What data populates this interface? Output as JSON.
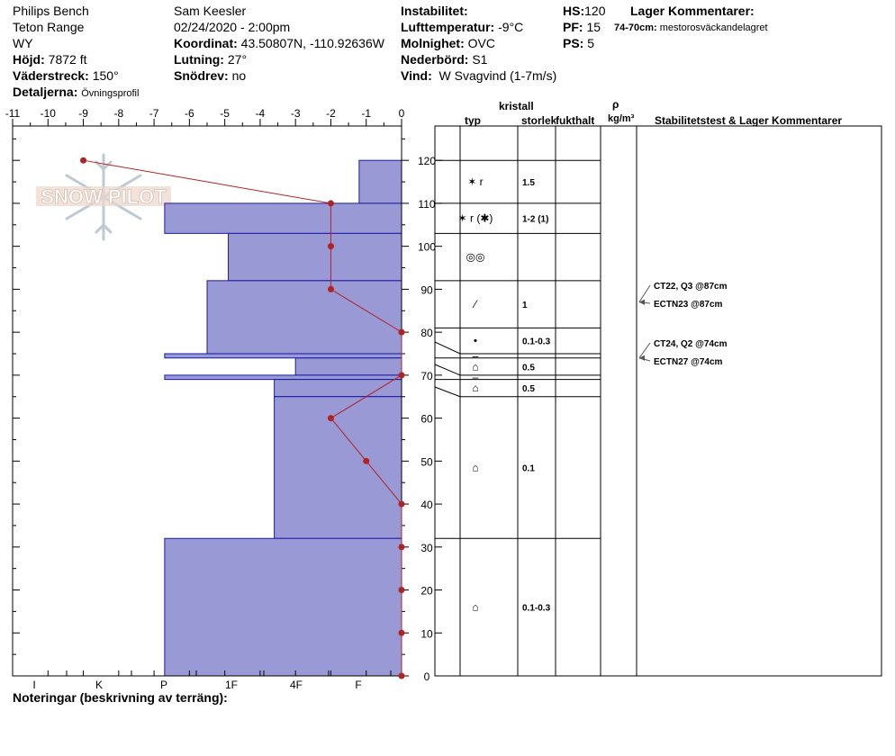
{
  "header": {
    "site": "Philips Bench",
    "range": "Teton Range",
    "state": "WY",
    "elevation_label": "Höjd:",
    "elevation_value": "7872 ft",
    "aspect_label": "Väderstreck:",
    "aspect_value": "150°",
    "details_label": "Detaljerna:",
    "details_value": "Övningsprofil",
    "observer": "Sam Keesler",
    "datetime": "02/24/2020 - 2:00pm",
    "coord_label": "Koordinat:",
    "coord_value": "43.50807N, -110.92636W",
    "slope_label": "Lutning:",
    "slope_value": "27°",
    "drift_label": "Snödrev:",
    "drift_value": "no",
    "instability_label": "Instabilitet:",
    "airtemp_label": "Lufttemperatur:",
    "airtemp_value": "-9°C",
    "sky_label": "Molnighet:",
    "sky_value": "OVC",
    "precip_label": "Nederbörd:",
    "precip_value": "S1",
    "wind_label": "Vind:",
    "wind_value": "W Svagvind (1-7m/s)",
    "hs_label": "HS:",
    "hs_value": "120",
    "pf_label": "PF:",
    "pf_value": "15",
    "ps_label": "PS:",
    "ps_value": "5",
    "layer_comments_label": "Lager Kommentarer:",
    "layer_comment_range": "74-70cm:",
    "layer_comment_text": "mestorosväckandelagret"
  },
  "logo_text": "SNOW PILOT",
  "notes_label": "Noteringar (beskrivning av terräng):",
  "table_headers": {
    "crystal": "kristall",
    "type": "typ",
    "size": "storlek",
    "moisture": "fukthalt",
    "rho": "ρ",
    "density_unit": "kg/m³",
    "stability": "Stabilitetstest & Lager Kommentarer"
  },
  "colors": {
    "hardness_fill": "#9999d6",
    "hardness_stroke": "#1a1aa0",
    "temp_line": "#b22222"
  },
  "chart_data": {
    "type": "area",
    "temperature_axis": {
      "ticks": [
        "-11",
        "-10",
        "-9",
        "-8",
        "-7",
        "-6",
        "-5",
        "-4",
        "-3",
        "-2",
        "-1",
        "0"
      ],
      "range": [
        -11,
        0
      ]
    },
    "height_axis": {
      "ticks": [
        "0",
        "10",
        "20",
        "30",
        "40",
        "50",
        "60",
        "70",
        "80",
        "90",
        "100",
        "110",
        "120"
      ],
      "range": [
        0,
        120
      ]
    },
    "hardness_axis": {
      "ticks": [
        "I",
        "K",
        "P",
        "1F",
        "4F",
        "F"
      ]
    },
    "temperature_profile": [
      {
        "height": 120,
        "temp": -9
      },
      {
        "height": 110,
        "temp": -2
      },
      {
        "height": 100,
        "temp": -2
      },
      {
        "height": 90,
        "temp": -2
      },
      {
        "height": 80,
        "temp": 0
      },
      {
        "height": 70,
        "temp": 0
      },
      {
        "height": 60,
        "temp": -2
      },
      {
        "height": 50,
        "temp": -1
      },
      {
        "height": 40,
        "temp": 0
      },
      {
        "height": 30,
        "temp": 0
      },
      {
        "height": 20,
        "temp": 0
      },
      {
        "height": 10,
        "temp": 0
      },
      {
        "height": 0,
        "temp": 0
      }
    ],
    "hardness_layers": [
      {
        "top": 120,
        "bottom": 110,
        "temp_equiv": -1.2
      },
      {
        "top": 110,
        "bottom": 103,
        "temp_equiv": -6.7
      },
      {
        "top": 103,
        "bottom": 92,
        "temp_equiv": -4.9
      },
      {
        "top": 92,
        "bottom": 75,
        "temp_equiv": -5.5
      },
      {
        "top": 75,
        "bottom": 74,
        "temp_equiv": -6.7
      },
      {
        "top": 74,
        "bottom": 70,
        "temp_equiv": -3.0
      },
      {
        "top": 70,
        "bottom": 69,
        "temp_equiv": -6.7
      },
      {
        "top": 69,
        "bottom": 65,
        "temp_equiv": -3.6
      },
      {
        "top": 65,
        "bottom": 32,
        "temp_equiv": -3.6
      },
      {
        "top": 32,
        "bottom": 0,
        "temp_equiv": -6.7
      }
    ],
    "layers_table": [
      {
        "top": 120,
        "bottom": 110,
        "type": "✶ r",
        "size": "1.5"
      },
      {
        "top": 110,
        "bottom": 103,
        "type": "✶ r (✱)",
        "size": "1-2 (1)"
      },
      {
        "top": 103,
        "bottom": 92,
        "type": "◎◎",
        "size": ""
      },
      {
        "top": 92,
        "bottom": 81,
        "type": "⁄",
        "size": "1"
      },
      {
        "top": 81,
        "bottom": 75,
        "type": "•",
        "size": "0.1-0.3"
      },
      {
        "top": 75,
        "bottom": 74,
        "type": "–",
        "size": ""
      },
      {
        "top": 74,
        "bottom": 70,
        "type": "⌂",
        "size": "0.5"
      },
      {
        "top": 70,
        "bottom": 69,
        "type": "–",
        "size": ""
      },
      {
        "top": 69,
        "bottom": 65,
        "type": "⌂",
        "size": "0.5"
      },
      {
        "top": 65,
        "bottom": 32,
        "type": "⌂",
        "size": "0.1"
      },
      {
        "top": 32,
        "bottom": 0,
        "type": "⌂",
        "size": "0.1-0.3"
      }
    ],
    "stability_tests": [
      {
        "label": "CT22, Q3 @87cm",
        "height": 87
      },
      {
        "label": "ECTN23 @87cm",
        "height": 87
      },
      {
        "label": "CT24, Q2 @74cm",
        "height": 74
      },
      {
        "label": "ECTN27 @74cm",
        "height": 74
      }
    ]
  }
}
